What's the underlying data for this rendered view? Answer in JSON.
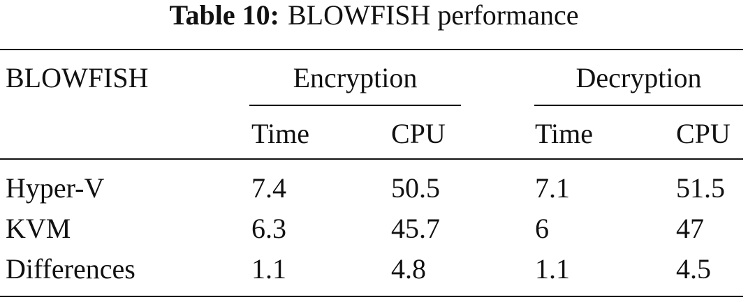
{
  "caption": {
    "label": "Table 10:",
    "text": "BLOWFISH performance"
  },
  "table": {
    "header": {
      "stub": "BLOWFISH",
      "groups": [
        "Encryption",
        "Decryption"
      ]
    },
    "subheader": [
      "Time",
      "CPU",
      "Time",
      "CPU"
    ],
    "rows": [
      [
        "Hyper-V",
        "7.4",
        "50.5",
        "7.1",
        "51.5"
      ],
      [
        "KVM",
        "6.3",
        "45.7",
        "6",
        "47"
      ],
      [
        "Differences",
        "1.1",
        "4.8",
        "1.1",
        "4.5"
      ]
    ]
  }
}
